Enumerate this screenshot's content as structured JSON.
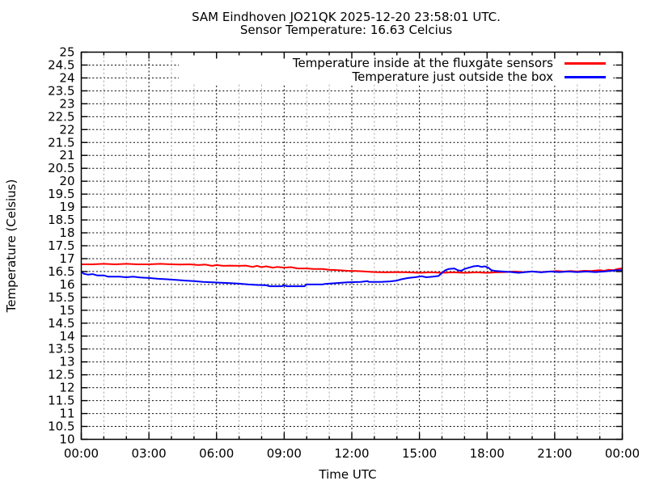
{
  "header": {
    "title": "SAM Eindhoven JO21QK 2025-12-20 23:58:01 UTC.",
    "subtitle": "Sensor Temperature: 16.63 Celcius"
  },
  "chart_data": {
    "type": "line",
    "title": "SAM Eindhoven JO21QK 2025-12-20 23:58:01 UTC.",
    "subtitle": "Sensor Temperature: 16.63 Celcius",
    "sensor_temperature_celsius": 16.63,
    "xlabel": "Time UTC",
    "ylabel": "Temperature (Celsius)",
    "xlim_hours": [
      0,
      24
    ],
    "ylim": [
      10,
      25
    ],
    "y_tick_step": 0.5,
    "y_tick_labels": [
      "10",
      "10.5",
      "11",
      "11.5",
      "12",
      "12.5",
      "13",
      "13.5",
      "14",
      "14.5",
      "15",
      "15.5",
      "16",
      "16.5",
      "17",
      "17.5",
      "18",
      "18.5",
      "19",
      "19.5",
      "20",
      "20.5",
      "21",
      "21.5",
      "22",
      "22.5",
      "23",
      "23.5",
      "24",
      "24.5",
      "25"
    ],
    "x_ticks": [
      {
        "hour": 0,
        "label": "00:00"
      },
      {
        "hour": 3,
        "label": "03:00"
      },
      {
        "hour": 6,
        "label": "06:00"
      },
      {
        "hour": 9,
        "label": "09:00"
      },
      {
        "hour": 12,
        "label": "12:00"
      },
      {
        "hour": 15,
        "label": "15:00"
      },
      {
        "hour": 18,
        "label": "18:00"
      },
      {
        "hour": 21,
        "label": "21:00"
      },
      {
        "hour": 24,
        "label": "00:00"
      }
    ],
    "x_minor_tick_step_hours": 1,
    "grid": {
      "horizontal": "dotted-black",
      "vertical_minor": "dashed-gray",
      "vertical_major": "dotted-black",
      "minor_color": "#adadad",
      "major_color": "#000000"
    },
    "legend_position": "top-right-inside-opaque",
    "series": [
      {
        "name": "Temperature inside at the fluxgate sensors",
        "color": "#ff0000",
        "points": [
          [
            0,
            16.78
          ],
          [
            0.5,
            16.78
          ],
          [
            1,
            16.8
          ],
          [
            1.5,
            16.78
          ],
          [
            2,
            16.8
          ],
          [
            2.5,
            16.78
          ],
          [
            3,
            16.78
          ],
          [
            3.5,
            16.8
          ],
          [
            4,
            16.78
          ],
          [
            4.4,
            16.77
          ],
          [
            4.8,
            16.78
          ],
          [
            5.2,
            16.75
          ],
          [
            5.5,
            16.77
          ],
          [
            5.8,
            16.72
          ],
          [
            6.0,
            16.75
          ],
          [
            6.3,
            16.72
          ],
          [
            6.6,
            16.73
          ],
          [
            7,
            16.72
          ],
          [
            7.3,
            16.73
          ],
          [
            7.6,
            16.68
          ],
          [
            7.8,
            16.72
          ],
          [
            8.0,
            16.67
          ],
          [
            8.2,
            16.7
          ],
          [
            8.5,
            16.65
          ],
          [
            8.7,
            16.68
          ],
          [
            9,
            16.65
          ],
          [
            9.3,
            16.67
          ],
          [
            9.6,
            16.62
          ],
          [
            10,
            16.62
          ],
          [
            10.3,
            16.6
          ],
          [
            10.7,
            16.6
          ],
          [
            11,
            16.57
          ],
          [
            11.4,
            16.55
          ],
          [
            11.8,
            16.53
          ],
          [
            12.2,
            16.52
          ],
          [
            12.6,
            16.5
          ],
          [
            13,
            16.48
          ],
          [
            13.5,
            16.47
          ],
          [
            14,
            16.48
          ],
          [
            14.5,
            16.47
          ],
          [
            15,
            16.45
          ],
          [
            15.5,
            16.47
          ],
          [
            16,
            16.45
          ],
          [
            16.5,
            16.47
          ],
          [
            17,
            16.45
          ],
          [
            17.5,
            16.47
          ],
          [
            18,
            16.45
          ],
          [
            18.4,
            16.47
          ],
          [
            18.8,
            16.48
          ],
          [
            19.2,
            16.5
          ],
          [
            19.6,
            16.48
          ],
          [
            20,
            16.5
          ],
          [
            20.4,
            16.48
          ],
          [
            20.8,
            16.5
          ],
          [
            21.1,
            16.52
          ],
          [
            21.4,
            16.5
          ],
          [
            21.7,
            16.52
          ],
          [
            22,
            16.5
          ],
          [
            22.3,
            16.53
          ],
          [
            22.6,
            16.52
          ],
          [
            23,
            16.55
          ],
          [
            23.2,
            16.53
          ],
          [
            23.4,
            16.57
          ],
          [
            23.6,
            16.55
          ],
          [
            23.8,
            16.6
          ],
          [
            24,
            16.63
          ]
        ]
      },
      {
        "name": "Temperature just outside the box",
        "color": "#0000ff",
        "points": [
          [
            0,
            16.5
          ],
          [
            0.1,
            16.42
          ],
          [
            0.3,
            16.38
          ],
          [
            0.5,
            16.4
          ],
          [
            0.7,
            16.35
          ],
          [
            1,
            16.35
          ],
          [
            1.2,
            16.3
          ],
          [
            1.7,
            16.3
          ],
          [
            2,
            16.28
          ],
          [
            2.3,
            16.3
          ],
          [
            2.6,
            16.27
          ],
          [
            3,
            16.25
          ],
          [
            3.4,
            16.22
          ],
          [
            3.8,
            16.2
          ],
          [
            4.2,
            16.18
          ],
          [
            4.6,
            16.15
          ],
          [
            5,
            16.13
          ],
          [
            5.4,
            16.1
          ],
          [
            5.8,
            16.08
          ],
          [
            6.2,
            16.07
          ],
          [
            6.6,
            16.05
          ],
          [
            7,
            16.03
          ],
          [
            7.4,
            16.0
          ],
          [
            7.8,
            15.98
          ],
          [
            8.2,
            15.97
          ],
          [
            8.35,
            15.93
          ],
          [
            8.9,
            15.93
          ],
          [
            9.0,
            15.97
          ],
          [
            9.1,
            15.93
          ],
          [
            9.9,
            15.93
          ],
          [
            10,
            16.0
          ],
          [
            10.7,
            16.0
          ],
          [
            10.8,
            16.02
          ],
          [
            11.3,
            16.05
          ],
          [
            11.8,
            16.08
          ],
          [
            12.4,
            16.1
          ],
          [
            12.7,
            16.13
          ],
          [
            12.75,
            16.1
          ],
          [
            13.3,
            16.1
          ],
          [
            13.7,
            16.12
          ],
          [
            14.0,
            16.15
          ],
          [
            14.2,
            16.2
          ],
          [
            14.5,
            16.25
          ],
          [
            14.8,
            16.28
          ],
          [
            15.1,
            16.32
          ],
          [
            15.3,
            16.28
          ],
          [
            15.6,
            16.3
          ],
          [
            15.85,
            16.33
          ],
          [
            16.0,
            16.45
          ],
          [
            16.15,
            16.55
          ],
          [
            16.3,
            16.6
          ],
          [
            16.55,
            16.62
          ],
          [
            16.7,
            16.55
          ],
          [
            16.85,
            16.53
          ],
          [
            17.0,
            16.6
          ],
          [
            17.2,
            16.65
          ],
          [
            17.4,
            16.7
          ],
          [
            17.6,
            16.72
          ],
          [
            17.75,
            16.68
          ],
          [
            17.9,
            16.7
          ],
          [
            18.05,
            16.65
          ],
          [
            18.2,
            16.55
          ],
          [
            18.4,
            16.52
          ],
          [
            18.7,
            16.5
          ],
          [
            19.1,
            16.48
          ],
          [
            19.4,
            16.45
          ],
          [
            19.7,
            16.48
          ],
          [
            20,
            16.5
          ],
          [
            20.4,
            16.47
          ],
          [
            20.8,
            16.5
          ],
          [
            21.2,
            16.48
          ],
          [
            21.6,
            16.5
          ],
          [
            22,
            16.48
          ],
          [
            22.4,
            16.5
          ],
          [
            22.8,
            16.48
          ],
          [
            23.2,
            16.5
          ],
          [
            23.5,
            16.53
          ],
          [
            23.8,
            16.55
          ],
          [
            24,
            16.55
          ]
        ]
      }
    ]
  }
}
